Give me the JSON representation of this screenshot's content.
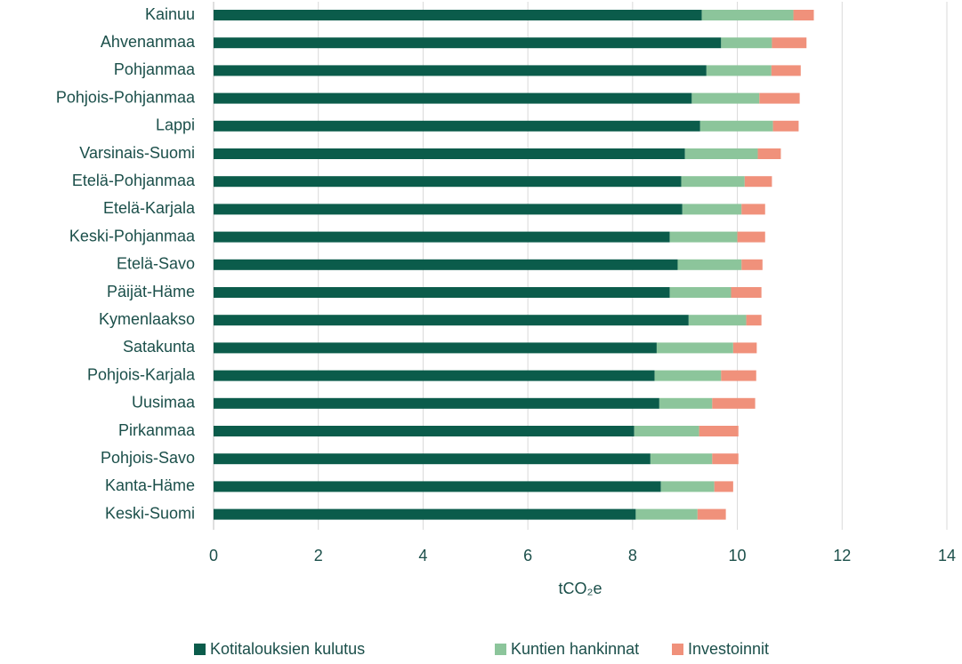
{
  "chart_data": {
    "type": "bar",
    "orientation": "horizontal",
    "stacked": true,
    "x_label": "tCO₂e",
    "categories": [
      "Kainuu",
      "Ahvenanmaa",
      "Pohjanmaa",
      "Pohjois-Pohjanmaa",
      "Lappi",
      "Varsinais-Suomi",
      "Etelä-Pohjanmaa",
      "Etelä-Karjala",
      "Keski-Pohjanmaa",
      "Etelä-Savo",
      "Päijät-Häme",
      "Kymenlaakso",
      "Satakunta",
      "Pohjois-Karjala",
      "Uusimaa",
      "Pirkanmaa",
      "Pohjois-Savo",
      "Kanta-Häme",
      "Keski-Suomi"
    ],
    "series": [
      {
        "name": "Kotitalouksien kulutus",
        "color": "#0b5c4b",
        "values": [
          9.32,
          9.69,
          9.41,
          9.13,
          9.29,
          9.0,
          8.93,
          8.95,
          8.71,
          8.86,
          8.71,
          9.07,
          8.46,
          8.42,
          8.51,
          8.03,
          8.34,
          8.54,
          8.06
        ]
      },
      {
        "name": "Kuntien hankinnat",
        "color": "#8cc59b",
        "values": [
          1.75,
          0.97,
          1.24,
          1.29,
          1.39,
          1.39,
          1.21,
          1.13,
          1.29,
          1.22,
          1.17,
          1.1,
          1.46,
          1.27,
          1.01,
          1.24,
          1.18,
          1.02,
          1.18
        ]
      },
      {
        "name": "Investoinnit",
        "color": "#f0917b",
        "values": [
          0.39,
          0.66,
          0.56,
          0.77,
          0.49,
          0.44,
          0.52,
          0.45,
          0.53,
          0.4,
          0.58,
          0.29,
          0.45,
          0.67,
          0.82,
          0.75,
          0.5,
          0.36,
          0.54
        ]
      }
    ],
    "xlim": [
      0,
      14
    ],
    "xticks": [
      0,
      2,
      4,
      6,
      8,
      10,
      12,
      14
    ],
    "grid": true,
    "legend": "bottom"
  }
}
